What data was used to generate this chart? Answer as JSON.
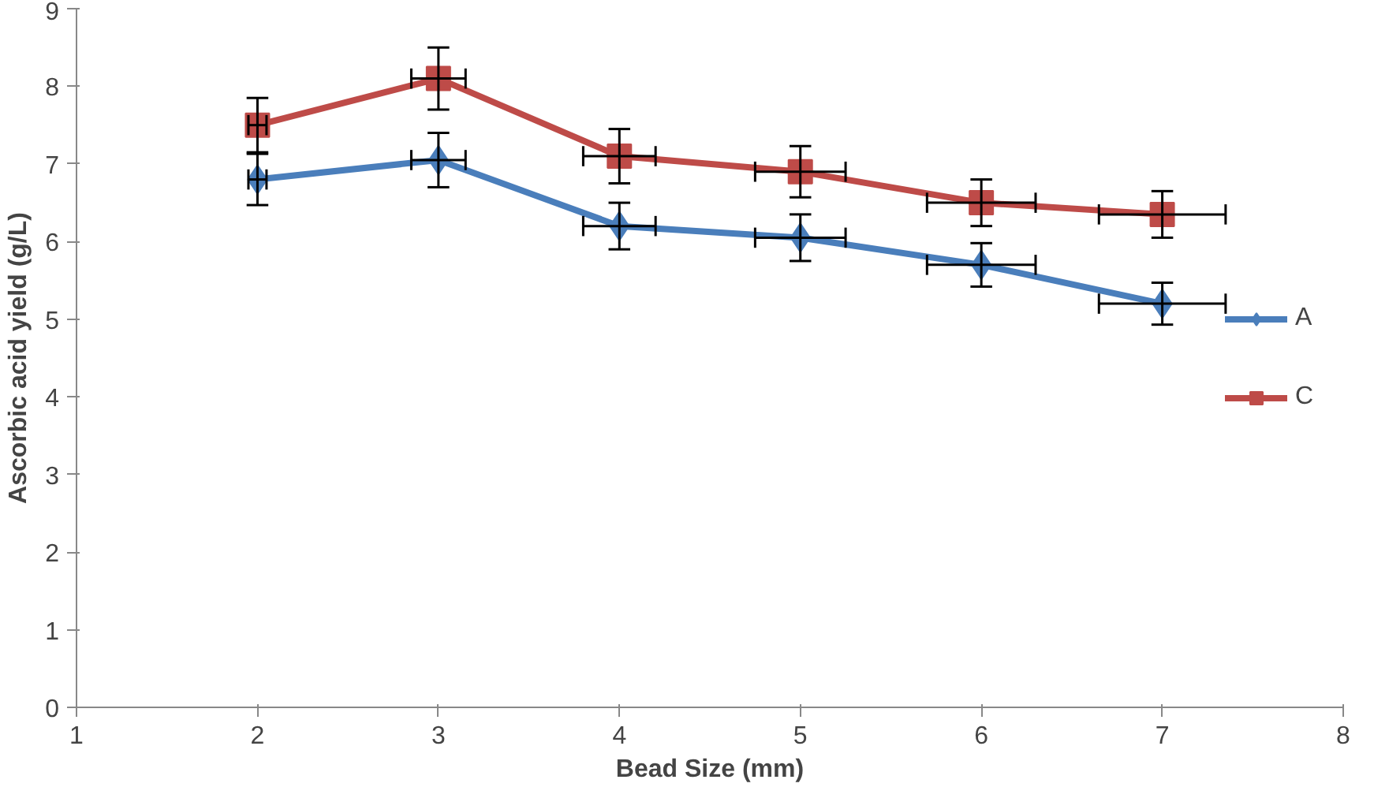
{
  "chart_data": {
    "type": "line",
    "xlabel": "Bead Size (mm)",
    "ylabel": "Ascorbic acid yield (g/L)",
    "x": [
      2,
      3,
      4,
      5,
      6,
      7
    ],
    "series": [
      {
        "name": "A",
        "color": "#4a7ebb",
        "marker": "diamond",
        "values": [
          6.8,
          7.05,
          6.2,
          6.05,
          5.7,
          5.2
        ],
        "errors": [
          0.33,
          0.35,
          0.3,
          0.3,
          0.28,
          0.27
        ],
        "xerrors": [
          0.05,
          0.15,
          0.2,
          0.25,
          0.3,
          0.35
        ]
      },
      {
        "name": "C",
        "color": "#be4b48",
        "marker": "square",
        "values": [
          7.5,
          8.1,
          7.1,
          6.9,
          6.5,
          6.35
        ],
        "errors": [
          0.35,
          0.4,
          0.35,
          0.33,
          0.3,
          0.3
        ],
        "xerrors": [
          0.05,
          0.15,
          0.2,
          0.25,
          0.3,
          0.35
        ]
      }
    ],
    "xlim": [
      1,
      8
    ],
    "xticks": [
      1,
      2,
      3,
      4,
      5,
      6,
      7,
      8
    ],
    "ylim": [
      0,
      9
    ],
    "yticks": [
      0,
      1,
      2,
      3,
      4,
      5,
      6,
      7,
      8,
      9
    ],
    "grid": false,
    "legend": "right"
  }
}
